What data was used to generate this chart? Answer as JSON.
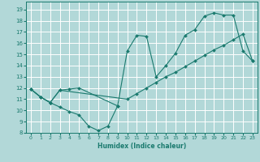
{
  "xlabel": "Humidex (Indice chaleur)",
  "bg_color": "#b2d8d8",
  "grid_color": "#ffffff",
  "line_color": "#1a7a6e",
  "xlim": [
    -0.5,
    23.5
  ],
  "ylim": [
    8,
    19.7
  ],
  "xticks": [
    0,
    1,
    2,
    3,
    4,
    5,
    6,
    7,
    8,
    9,
    10,
    11,
    12,
    13,
    14,
    15,
    16,
    17,
    18,
    19,
    20,
    21,
    22,
    23
  ],
  "yticks": [
    8,
    9,
    10,
    11,
    12,
    13,
    14,
    15,
    16,
    17,
    18,
    19
  ],
  "line1_x": [
    0,
    1,
    2,
    3,
    4,
    5,
    6,
    7,
    8,
    9
  ],
  "line1_y": [
    11.9,
    11.2,
    10.7,
    10.3,
    9.9,
    9.6,
    8.6,
    8.2,
    8.6,
    10.4
  ],
  "line2_x": [
    0,
    1,
    2,
    3,
    4,
    5,
    9,
    10,
    11,
    12,
    13,
    14,
    15,
    16,
    17,
    18,
    19,
    20,
    21,
    22,
    23
  ],
  "line2_y": [
    11.9,
    11.2,
    10.7,
    11.8,
    11.9,
    12.0,
    10.4,
    15.3,
    16.7,
    16.6,
    13.0,
    14.0,
    15.1,
    16.7,
    17.2,
    18.4,
    18.7,
    18.5,
    18.5,
    15.3,
    14.4
  ],
  "line3_x": [
    0,
    1,
    2,
    3,
    10,
    11,
    12,
    13,
    14,
    15,
    16,
    17,
    18,
    19,
    20,
    21,
    22,
    23
  ],
  "line3_y": [
    11.9,
    11.2,
    10.7,
    11.8,
    11.0,
    11.5,
    12.0,
    12.5,
    13.0,
    13.4,
    13.9,
    14.4,
    14.9,
    15.4,
    15.8,
    16.3,
    16.8,
    14.4
  ]
}
